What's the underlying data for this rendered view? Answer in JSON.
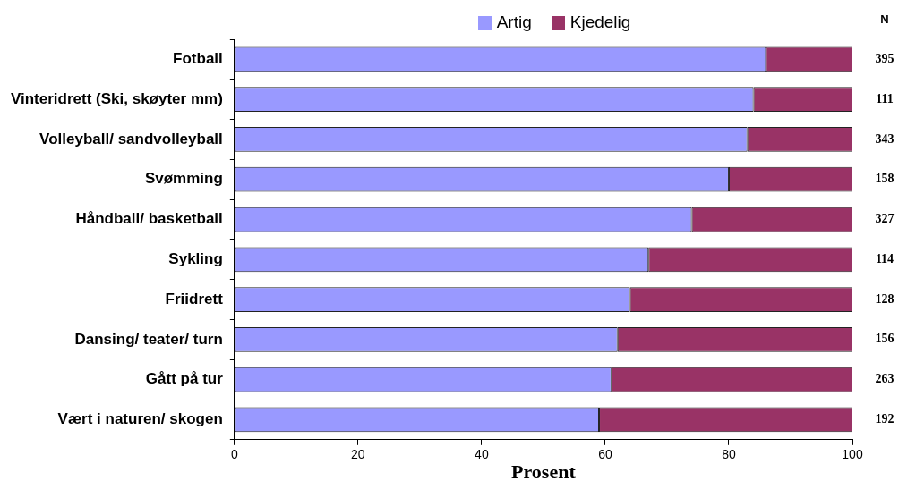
{
  "chart_data": {
    "type": "bar",
    "orientation": "horizontal",
    "stacked": true,
    "xlabel": "Prosent",
    "categories": [
      "Fotball",
      "Vinteridrett (Ski, skøyter mm)",
      "Volleyball/ sandvolleyball",
      "Svømming",
      "Håndball/ basketball",
      "Sykling",
      "Friidrett",
      "Dansing/ teater/ turn",
      "Gått på tur",
      "Vært i naturen/ skogen"
    ],
    "series": [
      {
        "name": "Artig",
        "color": "#9999ff",
        "values": [
          86,
          84,
          83,
          80,
          74,
          67,
          64,
          62,
          61,
          59
        ]
      },
      {
        "name": "Kjedelig",
        "color": "#993366",
        "values": [
          14,
          16,
          17,
          20,
          26,
          33,
          36,
          38,
          39,
          41
        ]
      }
    ],
    "xlim": [
      0,
      100
    ],
    "xticks": [
      0,
      20,
      40,
      60,
      80,
      100
    ],
    "legend": "top",
    "grid": false,
    "annotations": [
      "N",
      "395",
      "111",
      "343",
      "158",
      "327",
      "114",
      "128",
      "156",
      "263",
      "192"
    ]
  }
}
